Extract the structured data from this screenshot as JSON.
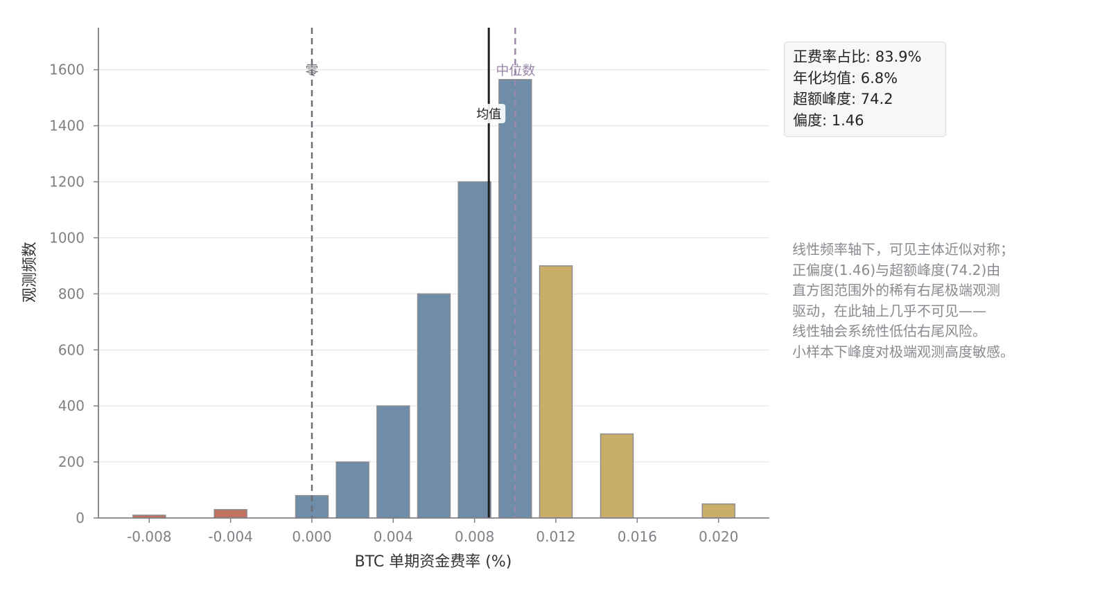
{
  "chart_data": {
    "type": "bar",
    "xlabel": "BTC 单期资金费率 (%)",
    "ylabel": "观测频数",
    "xlim": [
      -0.0105,
      0.0225
    ],
    "ylim": [
      0,
      1750
    ],
    "x_ticks": [
      -0.008,
      -0.004,
      0.0,
      0.004,
      0.008,
      0.012,
      0.016,
      0.02
    ],
    "x_tick_labels": [
      "-0.008",
      "-0.004",
      "0.000",
      "0.004",
      "0.008",
      "0.012",
      "0.016",
      "0.020"
    ],
    "y_ticks": [
      0,
      200,
      400,
      600,
      800,
      1000,
      1200,
      1400,
      1600
    ],
    "y_tick_labels": [
      "0",
      "200",
      "400",
      "600",
      "800",
      "1000",
      "1200",
      "1400",
      "1600"
    ],
    "grid": "horizontal",
    "bin_width": 0.0016,
    "bars": [
      {
        "x": -0.008,
        "value": 10,
        "color": "#c0725f"
      },
      {
        "x": -0.004,
        "value": 30,
        "color": "#c0725f"
      },
      {
        "x": 0.0,
        "value": 80,
        "color": "#6f8ca8"
      },
      {
        "x": 0.002,
        "value": 200,
        "color": "#6f8ca8"
      },
      {
        "x": 0.004,
        "value": 400,
        "color": "#6f8ca8"
      },
      {
        "x": 0.006,
        "value": 800,
        "color": "#6f8ca8"
      },
      {
        "x": 0.008,
        "value": 1200,
        "color": "#6f8ca8"
      },
      {
        "x": 0.01,
        "value": 1565,
        "color": "#6f8ca8"
      },
      {
        "x": 0.012,
        "value": 900,
        "color": "#c8ae69"
      },
      {
        "x": 0.015,
        "value": 300,
        "color": "#c8ae69"
      },
      {
        "x": 0.02,
        "value": 50,
        "color": "#c8ae69"
      }
    ],
    "reference_lines": [
      {
        "name": "零",
        "x": 0.0,
        "style": "dashed",
        "color": "#6e6e76"
      },
      {
        "name": "均值",
        "x": 0.0087,
        "style": "solid",
        "color": "#1f1f1f"
      },
      {
        "name": "中位数",
        "x": 0.01,
        "style": "dashed",
        "color": "#9b88ab"
      }
    ],
    "stats": [
      "正费率占比: 83.9%",
      "年化均值: 6.8%",
      "超额峰度: 74.2",
      "偏度: 1.46"
    ],
    "annotation": [
      "线性频率轴下，可见主体近似对称；",
      "正偏度(1.46)与超额峰度(74.2)由",
      "直方图范围外的稀有右尾极端观测",
      "驱动，在此轴上几乎不可见——",
      "线性轴会系统性低估右尾风险。",
      "小样本下峰度对极端观测高度敏感。"
    ]
  }
}
